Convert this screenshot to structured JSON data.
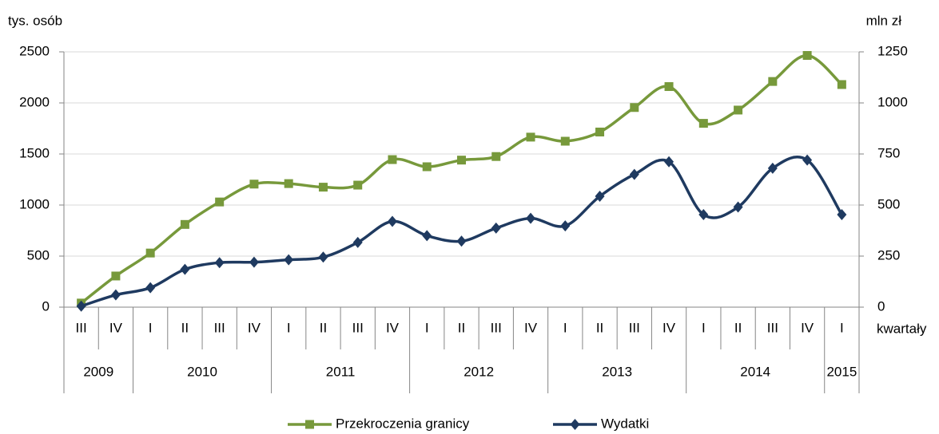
{
  "chart_data": {
    "type": "line",
    "y_label": "tys. osób",
    "y2_label": "mln zł",
    "x_label": "kwartały",
    "category_groups": [
      {
        "label": "2009",
        "quarters": [
          "III",
          "IV"
        ]
      },
      {
        "label": "2010",
        "quarters": [
          "I",
          "II",
          "III",
          "IV"
        ]
      },
      {
        "label": "2011",
        "quarters": [
          "I",
          "II",
          "III",
          "IV"
        ]
      },
      {
        "label": "2012",
        "quarters": [
          "I",
          "II",
          "III",
          "IV"
        ]
      },
      {
        "label": "2013",
        "quarters": [
          "I",
          "II",
          "III",
          "IV"
        ]
      },
      {
        "label": "2014",
        "quarters": [
          "I",
          "II",
          "III",
          "IV"
        ]
      },
      {
        "label": "2015",
        "quarters": [
          "I"
        ]
      }
    ],
    "series": [
      {
        "name": "Przekroczenia granicy",
        "color": "#77993b",
        "marker": "square",
        "values": [
          40,
          305,
          530,
          810,
          1030,
          1205,
          1210,
          1175,
          1195,
          1445,
          1375,
          1440,
          1475,
          1665,
          1625,
          1715,
          1955,
          2160,
          1800,
          1930,
          2210,
          2465,
          2180
        ]
      },
      {
        "name": "Wydatki",
        "color": "#1f3a60",
        "marker": "diamond",
        "axis": "y2",
        "values": [
          5,
          60,
          95,
          185,
          218,
          220,
          232,
          245,
          317,
          420,
          350,
          323,
          387,
          435,
          398,
          543,
          650,
          712,
          453,
          490,
          680,
          720,
          453
        ]
      }
    ],
    "ylim": [
      0,
      2500
    ],
    "yticks": [
      0,
      500,
      1000,
      1500,
      2000,
      2500
    ],
    "y2lim": [
      0,
      1250
    ],
    "y2ticks": [
      0,
      250,
      500,
      750,
      1000,
      1250
    ],
    "grid": true
  }
}
